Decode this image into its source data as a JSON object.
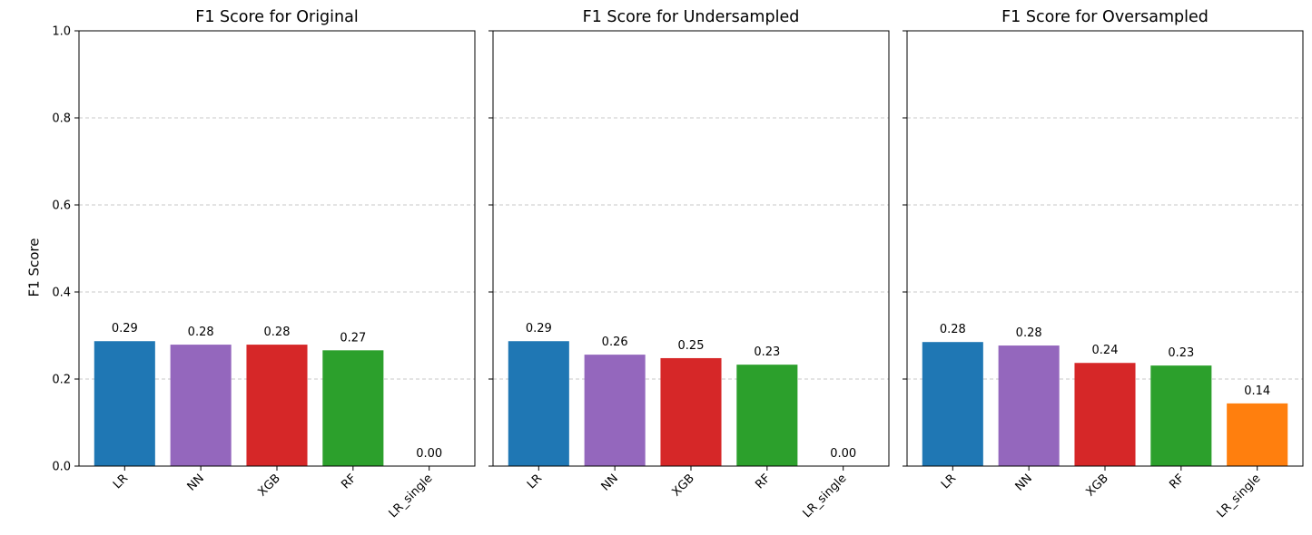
{
  "ylabel": "F1 Score",
  "chart_data": [
    {
      "type": "bar",
      "title": "F1 Score for Original",
      "categories": [
        "LR",
        "NN",
        "XGB",
        "RF",
        "LR_single"
      ],
      "values": [
        0.287,
        0.279,
        0.279,
        0.266,
        0.0
      ],
      "value_labels": [
        "0.29",
        "0.28",
        "0.28",
        "0.27",
        "0.00"
      ],
      "colors": [
        "#1f77b4",
        "#9467bd",
        "#d62728",
        "#2ca02c",
        "#ff7f0e"
      ],
      "ylim": [
        0,
        1.0
      ],
      "yticks": [
        "0.0",
        "0.2",
        "0.4",
        "0.6",
        "0.8",
        "1.0"
      ],
      "grid": "y-dashed"
    },
    {
      "type": "bar",
      "title": "F1 Score for Undersampled",
      "categories": [
        "LR",
        "NN",
        "XGB",
        "RF",
        "LR_single"
      ],
      "values": [
        0.287,
        0.256,
        0.248,
        0.233,
        0.0
      ],
      "value_labels": [
        "0.29",
        "0.26",
        "0.25",
        "0.23",
        "0.00"
      ],
      "colors": [
        "#1f77b4",
        "#9467bd",
        "#d62728",
        "#2ca02c",
        "#ff7f0e"
      ],
      "ylim": [
        0,
        1.0
      ],
      "yticks": [
        "0.0",
        "0.2",
        "0.4",
        "0.6",
        "0.8",
        "1.0"
      ],
      "grid": "y-dashed"
    },
    {
      "type": "bar",
      "title": "F1 Score for Oversampled",
      "categories": [
        "LR",
        "NN",
        "XGB",
        "RF",
        "LR_single"
      ],
      "values": [
        0.285,
        0.277,
        0.237,
        0.231,
        0.144
      ],
      "value_labels": [
        "0.28",
        "0.28",
        "0.24",
        "0.23",
        "0.14"
      ],
      "colors": [
        "#1f77b4",
        "#9467bd",
        "#d62728",
        "#2ca02c",
        "#ff7f0e"
      ],
      "ylim": [
        0,
        1.0
      ],
      "yticks": [
        "0.0",
        "0.2",
        "0.4",
        "0.6",
        "0.8",
        "1.0"
      ],
      "grid": "y-dashed"
    }
  ]
}
